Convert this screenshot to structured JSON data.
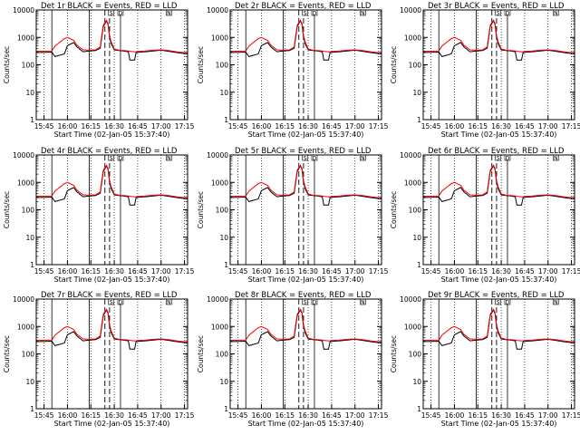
{
  "chart_data": {
    "type": "line",
    "layout": "3x3 grid",
    "xlabel": "Start Time (02-Jan-05 15:37:40)",
    "ylabel": "Counts/sec",
    "x_ticks": [
      "15:45",
      "16:00",
      "16:15",
      "16:30",
      "16:45",
      "17:00",
      "17:15"
    ],
    "x_range_minutes_after_15_40": [
      0,
      97
    ],
    "y_scale": "log",
    "y_ticks": [
      "1",
      "10",
      "100",
      "1000",
      "10000"
    ],
    "ylim": [
      1,
      10000
    ],
    "grid": "dotted vertical lines at tick times",
    "series_colors": {
      "events": "#000000",
      "lld": "#ff0000"
    },
    "markers": {
      "top_letters": [
        "S",
        "D",
        "N"
      ]
    },
    "panels": [
      {
        "title": "Det 1r BLACK = Events, RED = LLD"
      },
      {
        "title": "Det 2r BLACK = Events, RED = LLD"
      },
      {
        "title": "Det 3r BLACK = Events, RED = LLD"
      },
      {
        "title": "Det 4r BLACK = Events, RED = LLD"
      },
      {
        "title": "Det 5r BLACK = Events, RED = LLD"
      },
      {
        "title": "Det 6r BLACK = Events, RED = LLD"
      },
      {
        "title": "Det 7r BLACK = Events, RED = LLD"
      },
      {
        "title": "Det 8r BLACK = Events, RED = LLD"
      },
      {
        "title": "Det 9r BLACK = Events, RED = LLD"
      }
    ],
    "series": [
      {
        "x_minutes": [
          0,
          10,
          12,
          18,
          20,
          24,
          26,
          30,
          34,
          38,
          41,
          42,
          43,
          45,
          46,
          47,
          48,
          50,
          53,
          56,
          59,
          60,
          63,
          64,
          66,
          70,
          75,
          80,
          85,
          90,
          97
        ],
        "values": [
          280,
          290,
          200,
          250,
          500,
          650,
          450,
          300,
          320,
          330,
          400,
          1000,
          2500,
          4000,
          3000,
          1000,
          600,
          350,
          330,
          320,
          300,
          150,
          150,
          280,
          290,
          300,
          320,
          340,
          310,
          280,
          250
        ]
      },
      {
        "x_minutes": [
          0,
          10,
          12,
          18,
          20,
          24,
          26,
          30,
          34,
          38,
          41,
          42,
          43,
          45,
          46,
          47,
          48,
          50,
          53,
          56,
          59,
          60,
          63,
          64,
          66,
          70,
          75,
          80,
          85,
          90,
          97
        ],
        "values": [
          310,
          320,
          480,
          900,
          1000,
          780,
          520,
          350,
          340,
          350,
          450,
          1200,
          2800,
          4200,
          3300,
          1200,
          700,
          380,
          340,
          330,
          320,
          310,
          300,
          300,
          310,
          320,
          340,
          350,
          330,
          300,
          270
        ]
      }
    ]
  }
}
